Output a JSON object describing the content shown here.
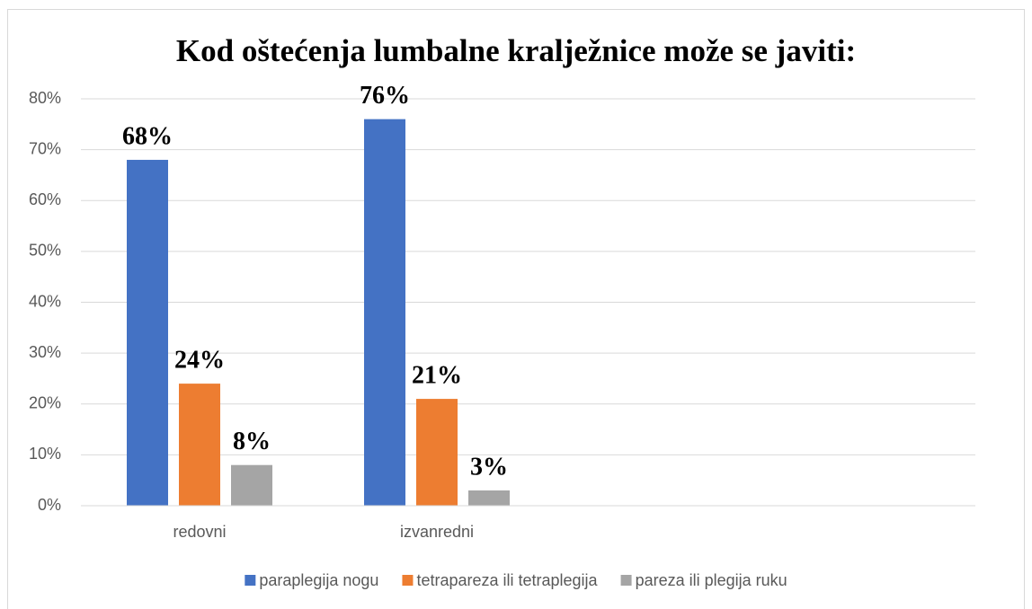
{
  "chart_data": {
    "type": "bar",
    "title": "Kod oštećenja lumbalne kralježnice može se javiti:",
    "categories": [
      "redovni",
      "izvanredni"
    ],
    "series": [
      {
        "name": "paraplegija nogu",
        "color": "#4472c4",
        "values": [
          68,
          76
        ],
        "value_labels": [
          "68%",
          "76%"
        ]
      },
      {
        "name": "tetrapareza ili tetraplegija",
        "color": "#ed7d31",
        "values": [
          24,
          21
        ],
        "value_labels": [
          "24%",
          "21%"
        ]
      },
      {
        "name": "pareza ili plegija ruku",
        "color": "#a5a5a5",
        "values": [
          8,
          3
        ],
        "value_labels": [
          "8%",
          "3%"
        ]
      }
    ],
    "ylim": [
      0,
      80
    ],
    "yticks": [
      {
        "value": 0,
        "label": "0%"
      },
      {
        "value": 10,
        "label": "10%"
      },
      {
        "value": 20,
        "label": "20%"
      },
      {
        "value": 30,
        "label": "30%"
      },
      {
        "value": 40,
        "label": "40%"
      },
      {
        "value": 50,
        "label": "50%"
      },
      {
        "value": 60,
        "label": "60%"
      },
      {
        "value": 70,
        "label": "70%"
      },
      {
        "value": 80,
        "label": "80%"
      }
    ],
    "grid": true,
    "legend": "bottom"
  }
}
